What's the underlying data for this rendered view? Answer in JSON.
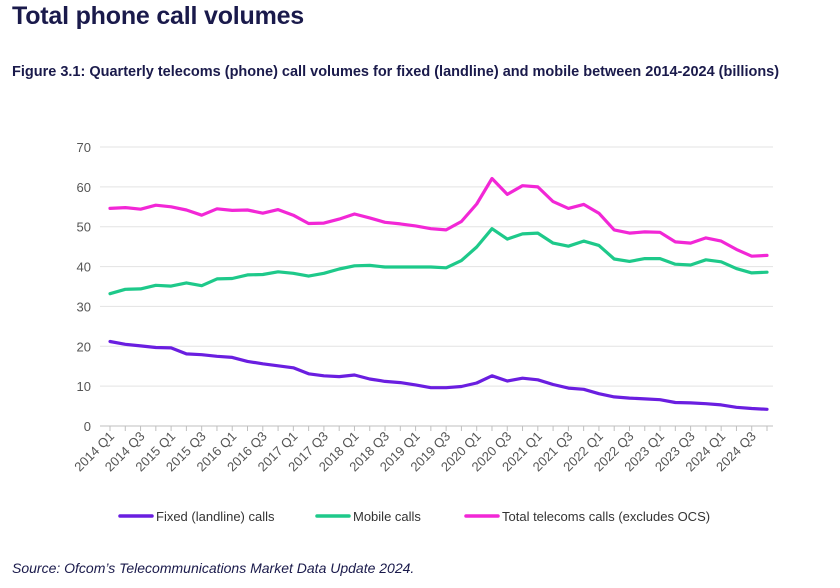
{
  "page": {
    "heading": "Total phone call volumes",
    "caption": "Figure 3.1: Quarterly telecoms (phone) call volumes for fixed (landline) and mobile between 2014-2024 (billions)",
    "source": "Source: Ofcom’s Telecommunications Market Data Update 2024."
  },
  "chart_data": {
    "type": "line",
    "title": "Figure 3.1: Quarterly telecoms (phone) call volumes for fixed (landline) and mobile between 2014-2024 (billions)",
    "xlabel": "",
    "ylabel": "",
    "ylim": [
      0,
      70
    ],
    "yticks": [
      "0",
      "10",
      "20",
      "30",
      "40",
      "50",
      "60",
      "70"
    ],
    "grid": true,
    "legend_position": "bottom",
    "categories": [
      "2014 Q1",
      "2014 Q2",
      "2014 Q3",
      "2014 Q4",
      "2015 Q1",
      "2015 Q2",
      "2015 Q3",
      "2015 Q4",
      "2016 Q1",
      "2016 Q2",
      "2016 Q3",
      "2016 Q4",
      "2017 Q1",
      "2017 Q2",
      "2017 Q3",
      "2017 Q4",
      "2018 Q1",
      "2018 Q2",
      "2018 Q3",
      "2018 Q4",
      "2019 Q1",
      "2019 Q2",
      "2019 Q3",
      "2019 Q4",
      "2020 Q1",
      "2020 Q2",
      "2020 Q3",
      "2020 Q4",
      "2021 Q1",
      "2021 Q2",
      "2021 Q3",
      "2021 Q4",
      "2022 Q1",
      "2022 Q2",
      "2022 Q3",
      "2022 Q4",
      "2023 Q1",
      "2023 Q2",
      "2023 Q3",
      "2023 Q4",
      "2024 Q1",
      "2024 Q2",
      "2024 Q3",
      "2024 Q4"
    ],
    "tick_labels": [
      "2014 Q1",
      "2014 Q3",
      "2015 Q1",
      "2015 Q3",
      "2016 Q1",
      "2016 Q3",
      "2017 Q1",
      "2017 Q3",
      "2018 Q1",
      "2018 Q3",
      "2019 Q1",
      "2019 Q3",
      "2020 Q1",
      "2020 Q3",
      "2021 Q1",
      "2021 Q3",
      "2022 Q1",
      "2022 Q3",
      "2023 Q1",
      "2023 Q3",
      "2024 Q1",
      "2024 Q3"
    ],
    "series": [
      {
        "name": "Fixed (landline) calls",
        "color": "#6a1ee0",
        "values": [
          21.2,
          20.5,
          20.1,
          19.7,
          19.6,
          18.1,
          17.9,
          17.5,
          17.2,
          16.2,
          15.6,
          15.1,
          14.6,
          13.1,
          12.6,
          12.4,
          12.8,
          11.8,
          11.2,
          10.9,
          10.3,
          9.6,
          9.6,
          9.9,
          10.8,
          12.6,
          11.3,
          12.0,
          11.6,
          10.4,
          9.5,
          9.2,
          8.1,
          7.3,
          7.0,
          6.8,
          6.6,
          5.9,
          5.8,
          5.6,
          5.3,
          4.7,
          4.4,
          4.2
        ]
      },
      {
        "name": "Mobile calls",
        "color": "#1ec98a",
        "values": [
          33.2,
          34.3,
          34.4,
          35.3,
          35.1,
          35.9,
          35.2,
          36.9,
          37.0,
          37.9,
          38.0,
          38.7,
          38.3,
          37.6,
          38.3,
          39.4,
          40.2,
          40.3,
          39.9,
          39.9,
          39.9,
          39.9,
          39.7,
          41.5,
          44.9,
          49.5,
          46.9,
          48.2,
          48.4,
          45.9,
          45.1,
          46.4,
          45.3,
          41.9,
          41.3,
          42.0,
          42.0,
          40.6,
          40.4,
          41.7,
          41.2,
          39.5,
          38.4,
          38.6
        ]
      },
      {
        "name": "Total telecoms calls (excludes OCS)",
        "color": "#f227d6",
        "values": [
          54.6,
          54.8,
          54.4,
          55.4,
          55.0,
          54.2,
          52.9,
          54.5,
          54.1,
          54.2,
          53.4,
          54.3,
          52.9,
          50.8,
          50.9,
          51.9,
          53.2,
          52.2,
          51.1,
          50.7,
          50.2,
          49.5,
          49.2,
          51.3,
          55.7,
          62.1,
          58.1,
          60.3,
          60.0,
          56.3,
          54.6,
          55.6,
          53.4,
          49.2,
          48.4,
          48.7,
          48.6,
          46.2,
          45.9,
          47.2,
          46.4,
          44.3,
          42.6,
          42.8
        ]
      }
    ]
  }
}
